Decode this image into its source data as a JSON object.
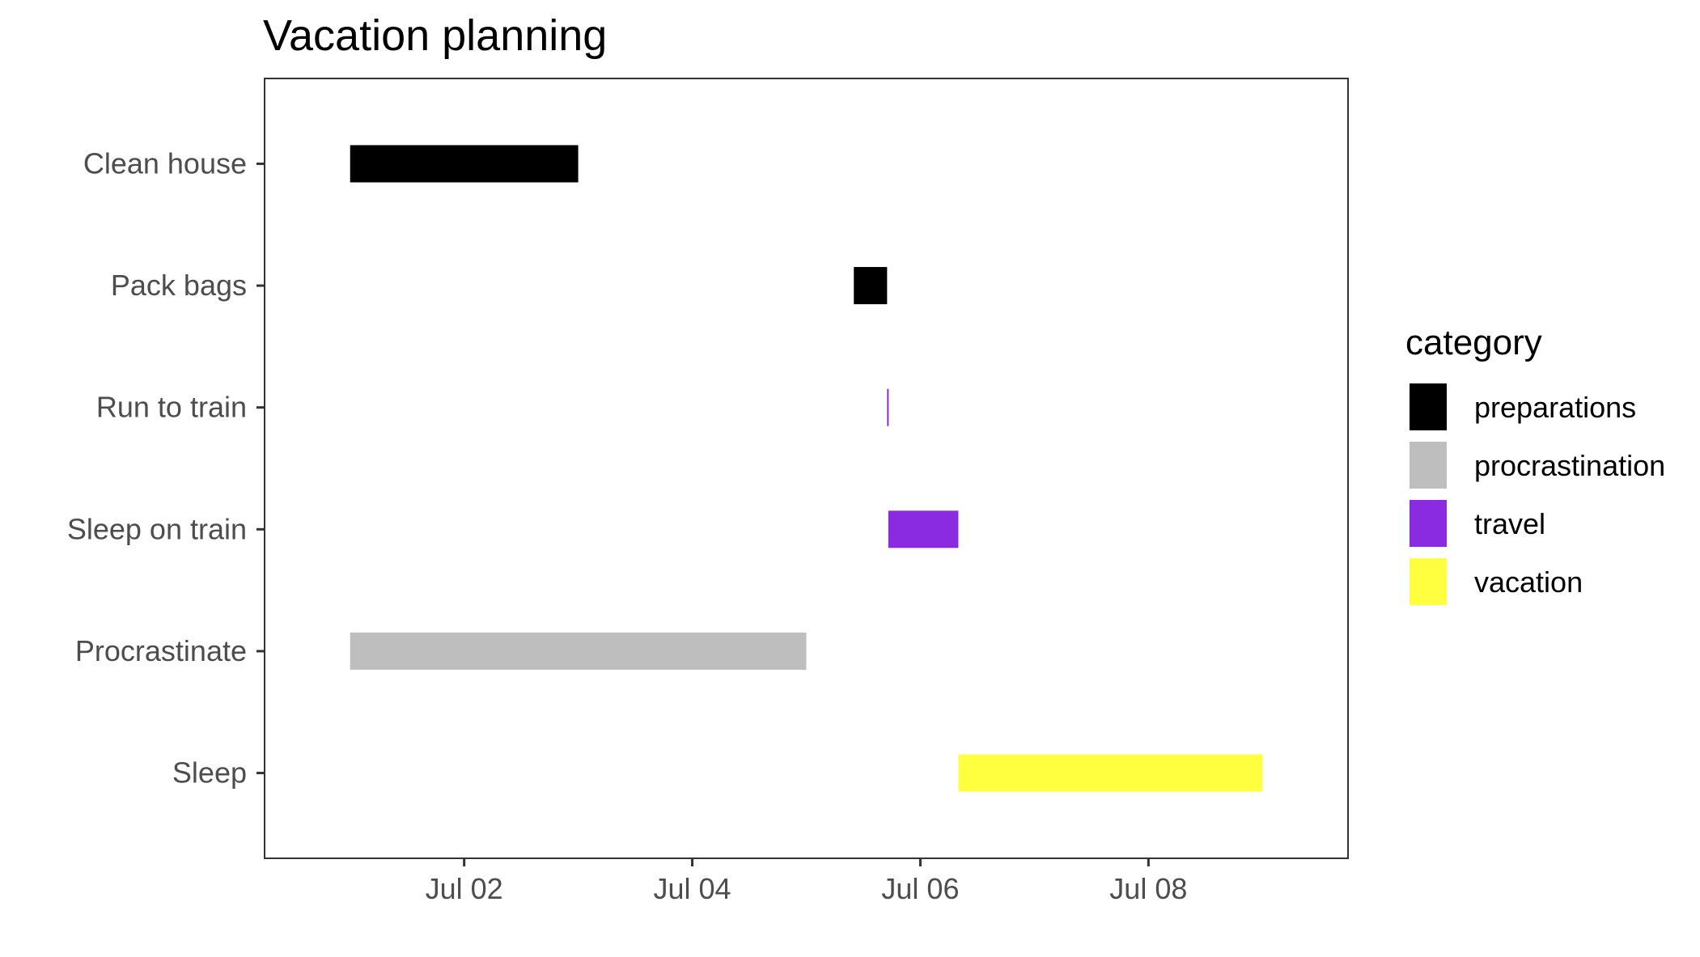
{
  "chart_data": {
    "type": "gantt",
    "title": "Vacation planning",
    "xlabel": "",
    "ylabel": "",
    "x_axis": {
      "type": "date",
      "range": [
        "2019-06-30T06:00",
        "2019-07-09T18:00"
      ],
      "tick_dates": [
        "2019-07-02",
        "2019-07-04",
        "2019-07-06",
        "2019-07-08"
      ],
      "tick_labels": [
        "Jul 02",
        "Jul 04",
        "Jul 06",
        "Jul 08"
      ]
    },
    "grid": false,
    "legend": {
      "title": "category",
      "position": "right",
      "entries": [
        {
          "label": "preparations",
          "color": "#000000"
        },
        {
          "label": "procrastination",
          "color": "#bebebe"
        },
        {
          "label": "travel",
          "color": "#8a2be2"
        },
        {
          "label": "vacation",
          "color": "#ffff3f"
        }
      ]
    },
    "tasks": [
      {
        "name": "Clean house",
        "start": "2019-07-01T00:00",
        "end": "2019-07-03T00:00",
        "category": "preparations"
      },
      {
        "name": "Pack bags",
        "start": "2019-07-05T10:00",
        "end": "2019-07-05T17:00",
        "category": "preparations"
      },
      {
        "name": "Run to train",
        "start": "2019-07-05T17:00",
        "end": "2019-07-05T17:15",
        "category": "travel"
      },
      {
        "name": "Sleep on train",
        "start": "2019-07-05T17:15",
        "end": "2019-07-06T08:00",
        "category": "travel"
      },
      {
        "name": "Procrastinate",
        "start": "2019-07-01T00:00",
        "end": "2019-07-05T00:00",
        "category": "procrastination"
      },
      {
        "name": "Sleep",
        "start": "2019-07-06T08:00",
        "end": "2019-07-09T00:00",
        "category": "vacation"
      }
    ]
  }
}
